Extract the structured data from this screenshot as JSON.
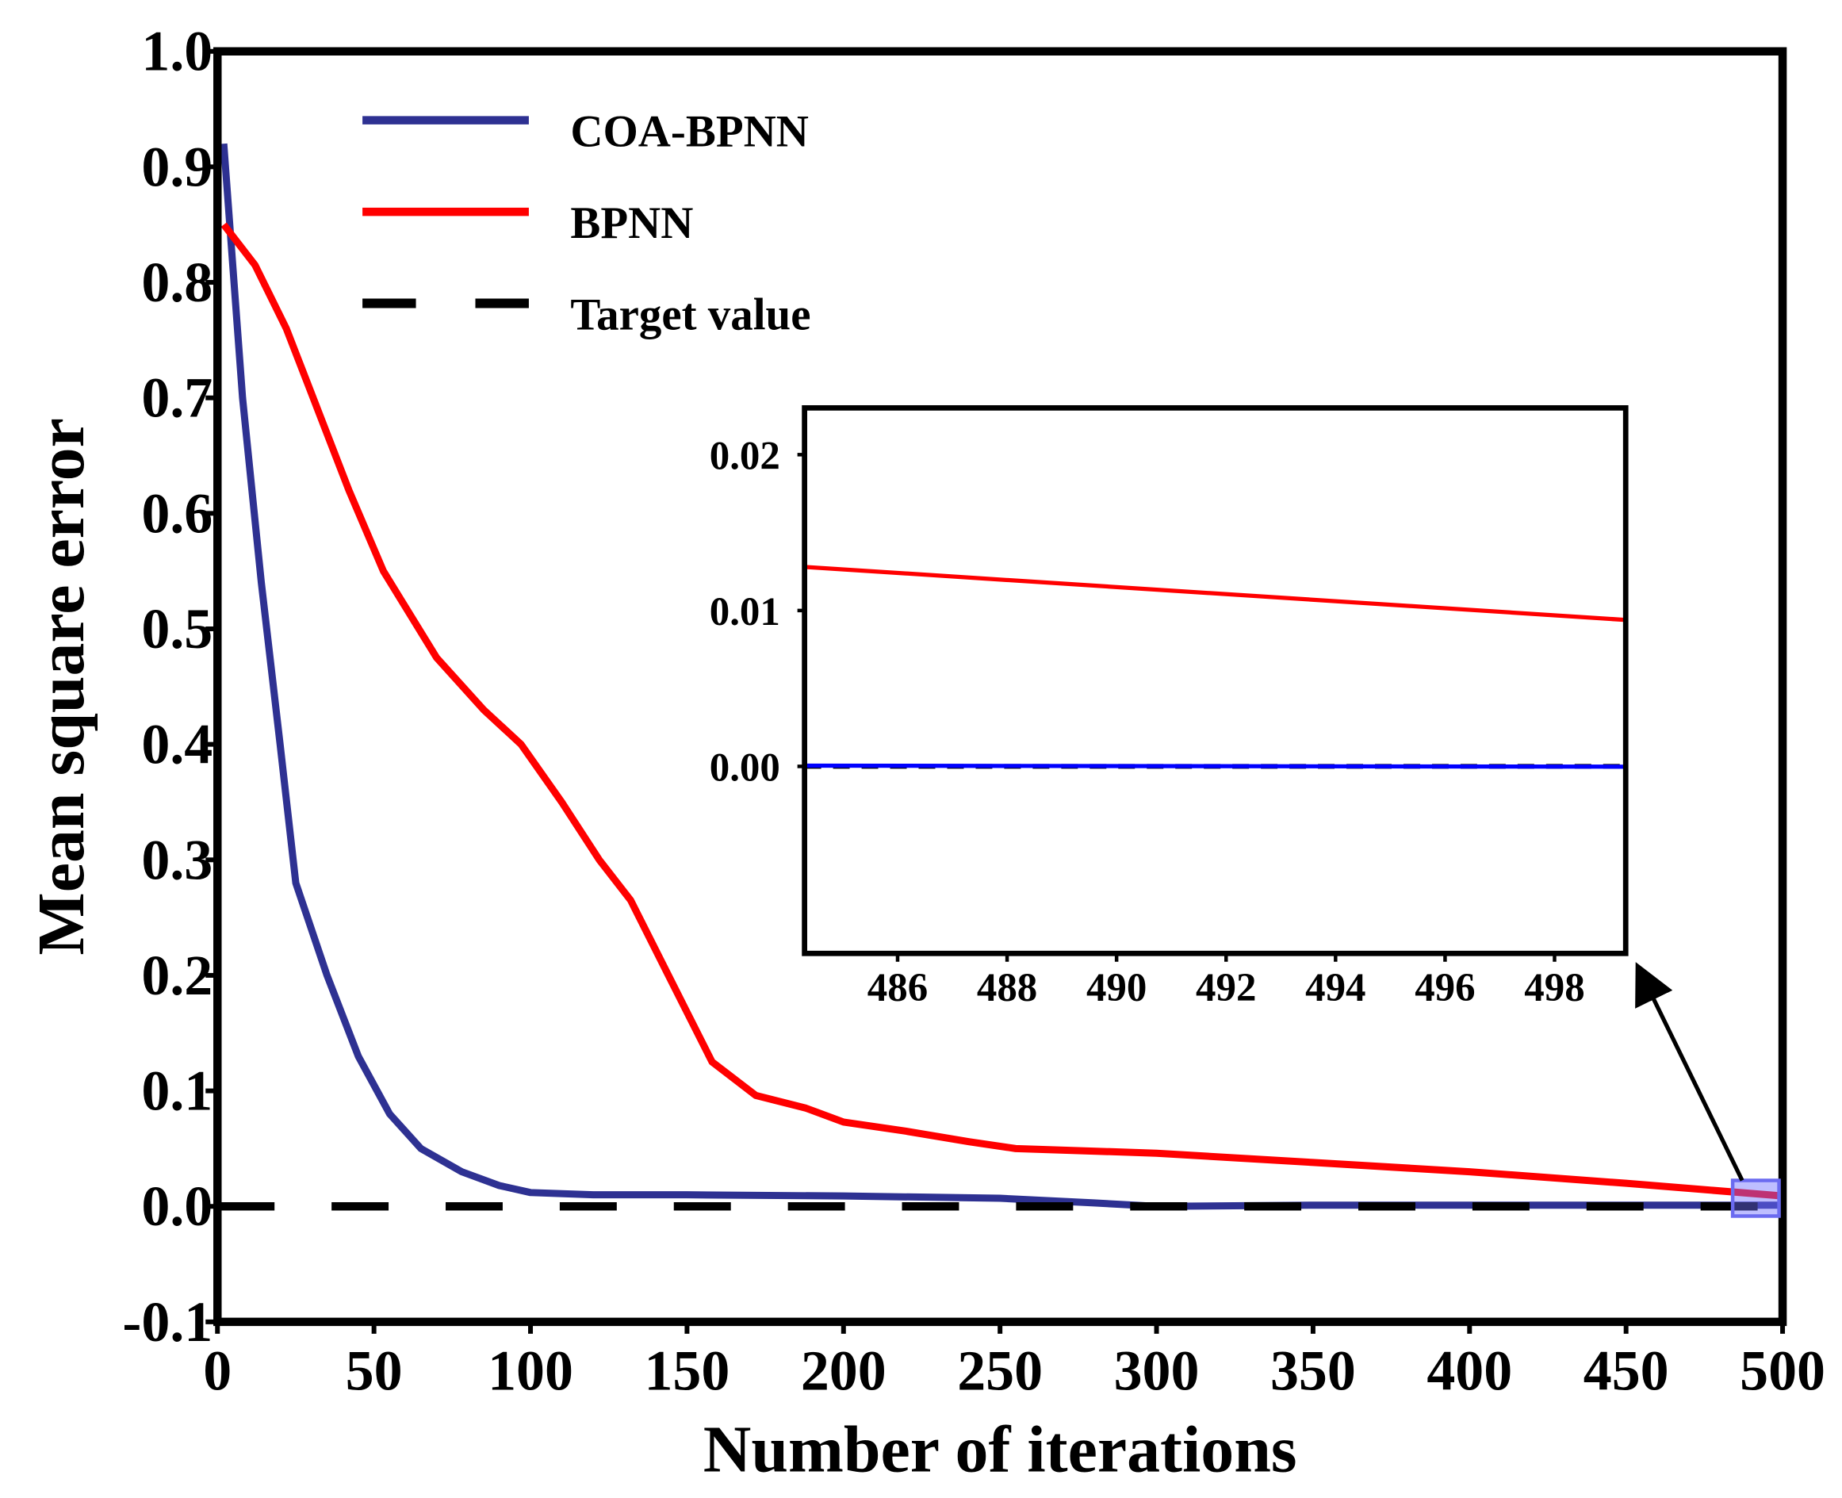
{
  "chart_data": [
    {
      "type": "line",
      "title": "",
      "xlabel": "Number of iterations",
      "ylabel": "Mean square error",
      "xlim": [
        0,
        500
      ],
      "ylim": [
        -0.1,
        1.0
      ],
      "xticks": [
        0,
        50,
        100,
        150,
        200,
        250,
        300,
        350,
        400,
        450,
        500
      ],
      "xtick_labels": [
        "0",
        "50",
        "100",
        "150",
        "200",
        "250",
        "300",
        "350",
        "400",
        "450",
        "500"
      ],
      "yticks": [
        -0.1,
        0.0,
        0.1,
        0.2,
        0.3,
        0.4,
        0.5,
        0.6,
        0.7,
        0.8,
        0.9,
        1.0
      ],
      "ytick_labels": [
        "-0.1",
        "0.0",
        "0.1",
        "0.2",
        "0.3",
        "0.4",
        "0.5",
        "0.6",
        "0.7",
        "0.8",
        "0.9",
        "1.0"
      ],
      "legend_position": "top-left",
      "series": [
        {
          "name": "COA-BPNN",
          "color": "#2e3192",
          "style": "solid",
          "x": [
            2,
            8,
            14,
            20,
            25,
            35,
            45,
            55,
            65,
            78,
            90,
            100,
            120,
            150,
            200,
            250,
            280,
            300,
            350,
            400,
            450,
            500
          ],
          "y": [
            0.92,
            0.7,
            0.54,
            0.4,
            0.28,
            0.2,
            0.13,
            0.08,
            0.05,
            0.03,
            0.018,
            0.012,
            0.01,
            0.01,
            0.009,
            0.007,
            0.003,
            0.0,
            0.001,
            0.001,
            0.001,
            0.001
          ]
        },
        {
          "name": "BPNN",
          "color": "#ff0000",
          "style": "solid",
          "x": [
            2,
            12,
            22,
            32,
            42,
            53,
            70,
            85,
            97,
            110,
            122,
            132,
            145,
            158,
            172,
            188,
            200,
            220,
            240,
            255,
            300,
            350,
            400,
            450,
            500
          ],
          "y": [
            0.85,
            0.815,
            0.76,
            0.69,
            0.62,
            0.55,
            0.475,
            0.43,
            0.4,
            0.35,
            0.3,
            0.265,
            0.195,
            0.125,
            0.096,
            0.085,
            0.073,
            0.065,
            0.056,
            0.05,
            0.046,
            0.038,
            0.03,
            0.02,
            0.009
          ]
        },
        {
          "name": "Target value",
          "color": "#000000",
          "style": "dashed",
          "x": [
            0,
            500
          ],
          "y": [
            0.0,
            0.0
          ]
        }
      ]
    },
    {
      "type": "line",
      "title": "",
      "xlabel": "",
      "ylabel": "",
      "xlim": [
        484.3,
        499.3
      ],
      "ylim": [
        -0.012,
        0.023
      ],
      "xticks": [
        486,
        488,
        490,
        492,
        494,
        496,
        498
      ],
      "xtick_labels": [
        "486",
        "488",
        "490",
        "492",
        "494",
        "496",
        "498"
      ],
      "yticks": [
        0.0,
        0.01,
        0.02
      ],
      "ytick_labels": [
        "0.00",
        "0.01",
        "0.02"
      ],
      "series": [
        {
          "name": "BPNN",
          "color": "#ff0000",
          "style": "solid",
          "x": [
            484.3,
            499.3
          ],
          "y": [
            0.0128,
            0.0094
          ]
        },
        {
          "name": "COA-BPNN",
          "color": "#0000ff",
          "style": "solid",
          "x": [
            484.3,
            499.3
          ],
          "y": [
            5e-05,
            -2e-05
          ]
        },
        {
          "name": "Target value",
          "color": "#000000",
          "style": "dashed",
          "x": [
            484.3,
            499.3
          ],
          "y": [
            0.0,
            0.0
          ]
        }
      ]
    }
  ]
}
